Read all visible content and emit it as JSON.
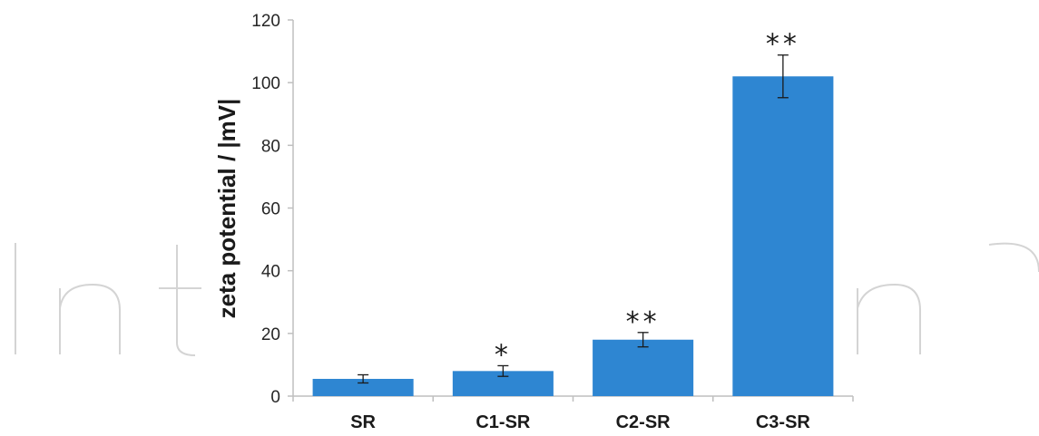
{
  "watermark": {
    "text": "IntechOpen",
    "color": "#d4d4d4"
  },
  "chart_data": {
    "type": "bar",
    "categories": [
      "SR",
      "C1-SR",
      "C2-SR",
      "C3-SR"
    ],
    "values": [
      5.5,
      8,
      18,
      102
    ],
    "errors": [
      1.3,
      1.7,
      2.3,
      6.8
    ],
    "significance": [
      "",
      "*",
      "**",
      "**"
    ],
    "ylabel": "zeta potential / |mV|",
    "xlabel": "",
    "title": "",
    "ylim": [
      0,
      120
    ],
    "yticks": [
      0,
      20,
      40,
      60,
      80,
      100,
      120
    ],
    "grid": false,
    "bar_color": "#2e86d2",
    "axis_color": "#bfbfbf"
  }
}
